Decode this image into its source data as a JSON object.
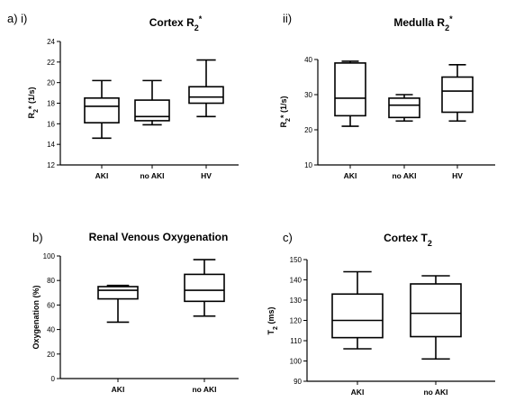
{
  "chart_data": [
    {
      "type": "boxplot",
      "panel_label": "a) i)",
      "title_main": "Cortex R",
      "title_sub": "2",
      "title_sup": "*",
      "ylabel_main": "R",
      "ylabel_sub": "2",
      "ylabel_rest": "* (1/s)",
      "ylim": [
        12,
        24
      ],
      "yticks": [
        "12",
        "14",
        "16",
        "18",
        "20",
        "22",
        "24"
      ],
      "categories": [
        "AKI",
        "no AKI",
        "HV"
      ],
      "boxes": [
        {
          "min": 14.6,
          "q1": 16.1,
          "median": 17.7,
          "q3": 18.5,
          "max": 20.2
        },
        {
          "min": 15.9,
          "q1": 16.3,
          "median": 16.7,
          "q3": 18.3,
          "max": 20.2
        },
        {
          "min": 16.7,
          "q1": 18.0,
          "median": 18.6,
          "q3": 19.6,
          "max": 22.2
        }
      ]
    },
    {
      "type": "boxplot",
      "panel_label": "ii)",
      "title_main": "Medulla R",
      "title_sub": "2",
      "title_sup": "*",
      "ylabel_main": "R",
      "ylabel_sub": "2",
      "ylabel_rest": "* (1/s)",
      "ylim": [
        10,
        40
      ],
      "yticks": [
        "10",
        "20",
        "30",
        "40"
      ],
      "categories": [
        "AKI",
        "no AKI",
        "HV"
      ],
      "boxes": [
        {
          "min": 21.0,
          "q1": 24.0,
          "median": 29.0,
          "q3": 39.0,
          "max": 39.5
        },
        {
          "min": 22.5,
          "q1": 23.5,
          "median": 27.0,
          "q3": 29.0,
          "max": 30.0
        },
        {
          "min": 22.5,
          "q1": 25.0,
          "median": 31.0,
          "q3": 35.0,
          "max": 38.5
        }
      ]
    },
    {
      "type": "boxplot",
      "panel_label": "b)",
      "title_main": "Renal Venous Oxygenation",
      "title_sub": "",
      "title_sup": "",
      "ylabel_main": "Oxygenation (%)",
      "ylabel_sub": "",
      "ylabel_rest": "",
      "ylim": [
        0,
        100
      ],
      "yticks": [
        "0",
        "20",
        "40",
        "60",
        "80",
        "100"
      ],
      "categories": [
        "AKI",
        "no AKI"
      ],
      "boxes": [
        {
          "min": 46,
          "q1": 65,
          "median": 72,
          "q3": 75,
          "max": 76
        },
        {
          "min": 51,
          "q1": 63,
          "median": 72,
          "q3": 85,
          "max": 97
        }
      ]
    },
    {
      "type": "boxplot",
      "panel_label": "c)",
      "title_main": "Cortex T",
      "title_sub": "2",
      "title_sup": "",
      "ylabel_main": "T",
      "ylabel_sub": "2",
      "ylabel_rest": " (ms)",
      "ylim": [
        90,
        150
      ],
      "yticks": [
        "90",
        "100",
        "110",
        "120",
        "130",
        "140",
        "150"
      ],
      "categories": [
        "AKI",
        "no AKI"
      ],
      "boxes": [
        {
          "min": 106,
          "q1": 111.5,
          "median": 120,
          "q3": 133,
          "max": 144
        },
        {
          "min": 101,
          "q1": 112,
          "median": 123.5,
          "q3": 138,
          "max": 142
        }
      ]
    }
  ]
}
